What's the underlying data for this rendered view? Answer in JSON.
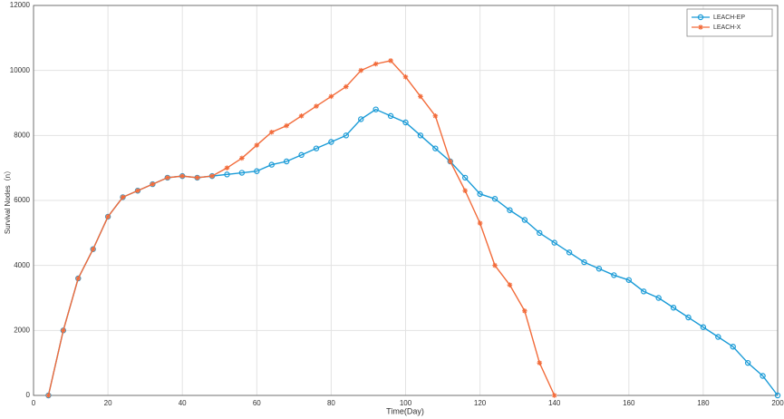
{
  "chart_data": {
    "type": "line",
    "xlabel": "Time(Day)",
    "ylabel": "Survival Nodes（n）",
    "x": [
      4,
      8,
      12,
      16,
      20,
      24,
      28,
      32,
      36,
      40,
      44,
      48,
      52,
      56,
      60,
      64,
      68,
      72,
      76,
      80,
      84,
      88,
      92,
      96,
      100,
      104,
      108,
      112,
      116,
      120,
      124,
      128,
      132,
      136,
      140,
      144,
      148,
      152,
      156,
      160,
      164,
      168,
      172,
      176,
      180,
      184,
      188,
      192,
      196,
      200
    ],
    "series": [
      {
        "name": "LEACH-EP",
        "color": "#1a9bd7",
        "marker": "circle",
        "values": [
          0,
          2000,
          3600,
          4500,
          5500,
          6100,
          6300,
          6500,
          6700,
          6750,
          6700,
          6750,
          6800,
          6850,
          6900,
          7100,
          7200,
          7400,
          7600,
          7800,
          8000,
          8500,
          8800,
          8600,
          8400,
          8000,
          7600,
          7200,
          6700,
          6200,
          6050,
          5700,
          5400,
          5000,
          4700,
          4400,
          4100,
          3900,
          3700,
          3550,
          3200,
          3000,
          2700,
          2400,
          2100,
          1800,
          1500,
          1000,
          600,
          0
        ]
      },
      {
        "name": "LEACH-X",
        "color": "#f26b3a",
        "marker": "star",
        "values": [
          0,
          2000,
          3600,
          4500,
          5500,
          6100,
          6300,
          6500,
          6700,
          6750,
          6700,
          6750,
          7000,
          7300,
          7700,
          8100,
          8300,
          8600,
          8900,
          9200,
          9500,
          10000,
          10200,
          10300,
          9800,
          9200,
          8600,
          7200,
          6300,
          5300,
          4000,
          3400,
          2600,
          1000,
          0,
          null,
          null,
          null,
          null,
          null,
          null,
          null,
          null,
          null,
          null,
          null,
          null,
          null,
          null,
          null
        ]
      }
    ],
    "xlim": [
      0,
      200
    ],
    "xticks": [
      0,
      20,
      40,
      60,
      80,
      100,
      120,
      140,
      160,
      180,
      200
    ],
    "ylim": [
      0,
      12000
    ],
    "yticks": [
      0,
      2000,
      4000,
      6000,
      8000,
      10000,
      12000
    ],
    "grid": true,
    "legend": "top-right"
  }
}
